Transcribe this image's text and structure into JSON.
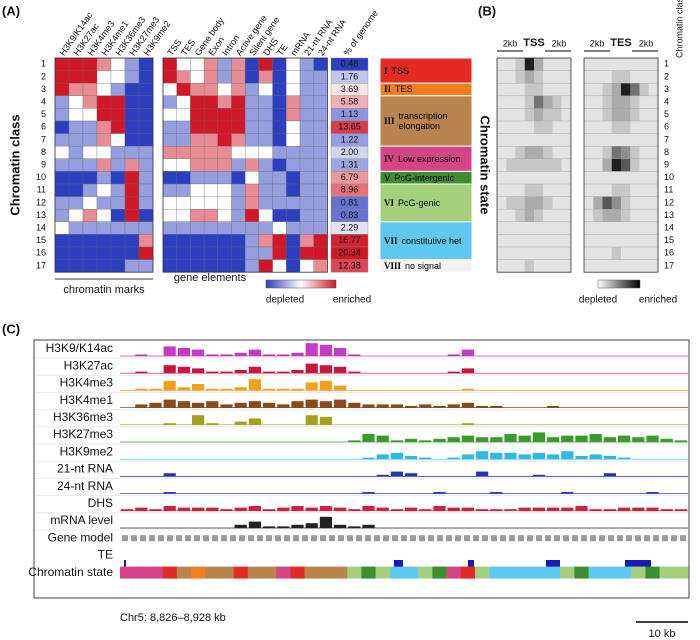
{
  "panel_a": {
    "label": "(A)",
    "y_axis_label": "Chromatin class",
    "classes": [
      1,
      2,
      3,
      4,
      5,
      6,
      7,
      8,
      9,
      10,
      11,
      12,
      13,
      14,
      15,
      16,
      17
    ],
    "marks": {
      "caption": "chromatin marks",
      "columns": [
        "H3K9/K14ac",
        "H3K27ac",
        "H3K4me3",
        "H3K4me1",
        "H3K36me3",
        "H3K27me3",
        "H3K9me2"
      ],
      "values": [
        [
          2,
          2,
          2,
          1,
          0,
          -1,
          -2
        ],
        [
          2,
          2,
          2,
          0,
          0,
          -1,
          -2
        ],
        [
          2,
          1,
          1,
          0,
          -1,
          -2,
          -2
        ],
        [
          -1,
          0,
          1,
          2,
          2,
          -2,
          -2
        ],
        [
          -1,
          0,
          0,
          2,
          2,
          -2,
          -2
        ],
        [
          -2,
          -1,
          -1,
          1,
          2,
          -2,
          -2
        ],
        [
          -1,
          -1,
          -1,
          1,
          0,
          -2,
          -2
        ],
        [
          0,
          -1,
          0,
          0,
          -1,
          -1,
          -1
        ],
        [
          -1,
          -1,
          -1,
          1,
          -1,
          1,
          -1
        ],
        [
          -2,
          -2,
          -2,
          -1,
          -2,
          2,
          -1
        ],
        [
          -2,
          -2,
          -1,
          0,
          -1,
          2,
          -1
        ],
        [
          -1,
          -1,
          0,
          -1,
          -1,
          2,
          -1
        ],
        [
          -1,
          0,
          1,
          0,
          -2,
          2,
          -2
        ],
        [
          0,
          -1,
          -1,
          -1,
          -1,
          -1,
          -1
        ],
        [
          -2,
          -2,
          -2,
          -2,
          -2,
          -2,
          1
        ],
        [
          -2,
          -2,
          -2,
          -2,
          -2,
          -2,
          2
        ],
        [
          -2,
          -2,
          -2,
          -2,
          -2,
          -1,
          -1
        ]
      ]
    },
    "elements": {
      "caption": "gene elements",
      "columns": [
        "TSS",
        "TES",
        "Gene body",
        "Exon",
        "Intron",
        "Active gene",
        "Silent gene",
        "DHS",
        "TE",
        "mRNA",
        "21-nt RNA",
        "24-nt RNA"
      ],
      "values": [
        [
          2,
          0,
          0,
          1,
          -1,
          1,
          -2,
          2,
          -2,
          0,
          -1,
          -2
        ],
        [
          2,
          1,
          0,
          1,
          -1,
          1,
          -2,
          1,
          -2,
          0,
          -1,
          -1
        ],
        [
          0,
          2,
          1,
          1,
          0,
          1,
          -1,
          0,
          -2,
          0,
          -1,
          -1
        ],
        [
          -1,
          0,
          2,
          2,
          1,
          2,
          -1,
          -1,
          -2,
          1,
          -1,
          -1
        ],
        [
          0,
          0,
          2,
          2,
          2,
          2,
          -1,
          -1,
          -2,
          1,
          -1,
          -1
        ],
        [
          -1,
          -1,
          2,
          2,
          2,
          2,
          -1,
          -1,
          -2,
          0,
          -1,
          -1
        ],
        [
          -1,
          -1,
          1,
          1,
          2,
          1,
          -1,
          -1,
          -2,
          0,
          -1,
          -1
        ],
        [
          1,
          1,
          1,
          1,
          1,
          0,
          0,
          0,
          -1,
          -1,
          -1,
          -1
        ],
        [
          0,
          0,
          1,
          1,
          1,
          -1,
          1,
          -1,
          -2,
          -1,
          -1,
          -1
        ],
        [
          -2,
          -2,
          -1,
          -1,
          -1,
          -2,
          0,
          -1,
          -1,
          -2,
          -1,
          -1
        ],
        [
          -1,
          -1,
          0,
          0,
          0,
          -1,
          1,
          -1,
          -1,
          -2,
          -1,
          -1
        ],
        [
          0,
          0,
          0,
          0,
          0,
          -1,
          1,
          -1,
          -1,
          -1,
          -1,
          -1
        ],
        [
          0,
          0,
          1,
          1,
          0,
          -1,
          2,
          0,
          -2,
          -2,
          -1,
          -1
        ],
        [
          -1,
          -1,
          -1,
          -1,
          -1,
          -1,
          -1,
          -1,
          0,
          -1,
          -1,
          -1
        ],
        [
          -2,
          -2,
          -2,
          -2,
          -2,
          -2,
          -1,
          1,
          2,
          -2,
          1,
          2
        ],
        [
          -2,
          -2,
          -2,
          -2,
          -2,
          -2,
          -1,
          -1,
          2,
          -2,
          2,
          2
        ],
        [
          -2,
          -2,
          -2,
          -2,
          -2,
          -2,
          -1,
          2,
          0,
          -2,
          0,
          1
        ]
      ]
    },
    "genome_percent": {
      "header": "% of genome",
      "values": [
        0.48,
        1.76,
        3.69,
        5.58,
        1.13,
        13.65,
        1.22,
        2.0,
        1.31,
        6.79,
        8.96,
        0.81,
        0.83,
        2.29,
        16.77,
        20.34,
        12.38
      ],
      "value_labels": [
        "0.48",
        "1.76",
        "3.69",
        "5.58",
        "1.13",
        "13.65",
        "1.22",
        "2.00",
        "1.31",
        "6.79",
        "8.96",
        "0.81",
        "0.83",
        "2.29",
        "16.77",
        "20.34",
        "12.38"
      ]
    },
    "legend": {
      "low": "depleted",
      "high": "enriched"
    },
    "state_title": "Chromatin state",
    "states": [
      {
        "numeral": "I",
        "name": "TSS",
        "color": "#e42a24",
        "classes": [
          1,
          2
        ]
      },
      {
        "numeral": "II",
        "name": "TES",
        "color": "#f37e1e",
        "classes": [
          3,
          3
        ]
      },
      {
        "numeral": "III",
        "name": "transcription elongation",
        "color": "#b9844e",
        "classes": [
          4,
          7
        ]
      },
      {
        "numeral": "IV",
        "name": "Low expression",
        "color": "#d54487",
        "classes": [
          8,
          9
        ]
      },
      {
        "numeral": "V",
        "name": "PcG-intergenic",
        "color": "#3e8d31",
        "classes": [
          10,
          10
        ]
      },
      {
        "numeral": "VI",
        "name": "PcG-genic",
        "color": "#a4d07d",
        "classes": [
          11,
          13
        ]
      },
      {
        "numeral": "VII",
        "name": "constitutive het",
        "color": "#5fc8ef",
        "classes": [
          14,
          16
        ]
      },
      {
        "numeral": "VIII",
        "name": "no signal",
        "color": "#f2f2f2",
        "classes": [
          17,
          17
        ]
      }
    ]
  },
  "panel_b": {
    "label": "(B)",
    "flank": "2kb",
    "tss": "TSS",
    "tes": "TES",
    "class_header": "Chromatin class",
    "tss_profile": [
      [
        1,
        1,
        2,
        8,
        3,
        1,
        1,
        1
      ],
      [
        1,
        1,
        2,
        3,
        2,
        1,
        1,
        1
      ],
      [
        1,
        1,
        1,
        2,
        2,
        1,
        1,
        1
      ],
      [
        1,
        1,
        1,
        2,
        5,
        3,
        2,
        1
      ],
      [
        1,
        1,
        1,
        2,
        3,
        2,
        2,
        1
      ],
      [
        1,
        1,
        1,
        1,
        2,
        2,
        1,
        1
      ],
      [
        1,
        1,
        1,
        1,
        1,
        1,
        1,
        1
      ],
      [
        1,
        1,
        2,
        3,
        3,
        2,
        1,
        1
      ],
      [
        1,
        2,
        2,
        2,
        2,
        2,
        2,
        1
      ],
      [
        1,
        1,
        1,
        1,
        1,
        1,
        1,
        1
      ],
      [
        1,
        1,
        1,
        2,
        2,
        1,
        1,
        1
      ],
      [
        1,
        2,
        2,
        3,
        3,
        2,
        1,
        1
      ],
      [
        1,
        1,
        2,
        3,
        2,
        1,
        1,
        1
      ],
      [
        1,
        1,
        1,
        1,
        1,
        1,
        1,
        1
      ],
      [
        1,
        1,
        1,
        1,
        1,
        1,
        1,
        1
      ],
      [
        1,
        1,
        1,
        1,
        1,
        1,
        1,
        1
      ],
      [
        1,
        1,
        1,
        2,
        1,
        1,
        1,
        1
      ]
    ],
    "tes_profile": [
      [
        1,
        1,
        1,
        1,
        1,
        1,
        1,
        1
      ],
      [
        1,
        1,
        1,
        2,
        2,
        1,
        1,
        1
      ],
      [
        1,
        1,
        2,
        3,
        8,
        5,
        2,
        1
      ],
      [
        1,
        1,
        2,
        3,
        3,
        2,
        1,
        1
      ],
      [
        1,
        1,
        2,
        3,
        3,
        2,
        1,
        1
      ],
      [
        1,
        1,
        1,
        2,
        2,
        1,
        1,
        1
      ],
      [
        1,
        1,
        1,
        1,
        1,
        1,
        1,
        1
      ],
      [
        1,
        1,
        2,
        5,
        4,
        2,
        1,
        1
      ],
      [
        1,
        1,
        3,
        8,
        6,
        2,
        1,
        1
      ],
      [
        1,
        1,
        1,
        1,
        1,
        1,
        1,
        1
      ],
      [
        1,
        1,
        1,
        2,
        2,
        1,
        1,
        1
      ],
      [
        1,
        3,
        6,
        4,
        2,
        1,
        1,
        1
      ],
      [
        1,
        2,
        3,
        3,
        2,
        1,
        1,
        1
      ],
      [
        1,
        1,
        1,
        1,
        1,
        1,
        1,
        1
      ],
      [
        1,
        1,
        1,
        1,
        1,
        1,
        1,
        1
      ],
      [
        1,
        1,
        1,
        2,
        1,
        1,
        1,
        1
      ],
      [
        1,
        1,
        1,
        1,
        1,
        1,
        1,
        1
      ]
    ],
    "legend": {
      "low": "depleted",
      "high": "enriched"
    }
  },
  "panel_c": {
    "label": "(C)",
    "tracks": [
      {
        "name": "H3K9/K14ac",
        "color": "#c53bc6",
        "values": [
          0,
          1,
          0,
          6,
          5,
          4,
          1,
          1,
          2,
          4,
          1,
          1,
          2,
          8,
          7,
          5,
          1,
          0,
          0,
          0,
          0,
          0,
          0,
          1,
          4,
          0,
          0,
          0,
          0,
          0,
          0,
          0,
          0,
          0,
          0,
          0,
          0,
          0,
          0,
          0
        ]
      },
      {
        "name": "H3K27ac",
        "color": "#c8163f",
        "values": [
          0,
          1,
          0,
          5,
          4,
          3,
          1,
          1,
          2,
          4,
          1,
          1,
          2,
          6,
          5,
          4,
          1,
          0,
          0,
          0,
          0,
          0,
          0,
          1,
          3,
          0,
          0,
          0,
          0,
          0,
          0,
          0,
          0,
          0,
          0,
          0,
          0,
          0,
          0,
          0
        ]
      },
      {
        "name": "H3K4me3",
        "color": "#f0a11e",
        "values": [
          0,
          1,
          1,
          6,
          2,
          4,
          1,
          1,
          2,
          7,
          1,
          1,
          1,
          5,
          6,
          3,
          0,
          0,
          0,
          0,
          0,
          0,
          0,
          0,
          1,
          0,
          0,
          0,
          0,
          0,
          0,
          0,
          0,
          0,
          0,
          0,
          0,
          0,
          0,
          0
        ]
      },
      {
        "name": "H3K4me1",
        "color": "#8b4a1a",
        "values": [
          0,
          2,
          3,
          5,
          4,
          3,
          4,
          2,
          3,
          4,
          3,
          2,
          4,
          5,
          4,
          5,
          3,
          2,
          2,
          2,
          1,
          2,
          1,
          2,
          3,
          1,
          1,
          0,
          0,
          0,
          1,
          0,
          0,
          0,
          0,
          0,
          0,
          0,
          0,
          0
        ]
      },
      {
        "name": "H3K36me3",
        "color": "#a3a21e",
        "values": [
          0,
          0,
          0,
          1,
          0,
          6,
          1,
          0,
          2,
          4,
          0,
          0,
          0,
          6,
          5,
          0,
          0,
          0,
          0,
          0,
          0,
          0,
          0,
          0,
          1,
          0,
          0,
          0,
          0,
          0,
          0,
          0,
          0,
          0,
          0,
          0,
          0,
          0,
          0,
          0
        ]
      },
      {
        "name": "H3K27me3",
        "color": "#3a9a2c",
        "values": [
          0,
          0,
          0,
          0,
          0,
          0,
          0,
          0,
          0,
          0,
          0,
          0,
          0,
          0,
          0,
          0,
          1,
          5,
          4,
          1,
          2,
          1,
          2,
          3,
          4,
          3,
          3,
          5,
          4,
          6,
          3,
          4,
          4,
          5,
          3,
          4,
          3,
          4,
          2,
          1
        ]
      },
      {
        "name": "H3K9me2",
        "color": "#2fb9e6",
        "values": [
          0,
          0,
          0,
          0,
          0,
          0,
          0,
          0,
          0,
          0,
          0,
          0,
          0,
          0,
          0,
          0,
          0,
          1,
          3,
          4,
          2,
          1,
          0,
          1,
          3,
          5,
          4,
          4,
          3,
          4,
          3,
          5,
          2,
          3,
          2,
          1,
          0,
          0,
          0,
          0
        ]
      },
      {
        "name": "21-nt RNA",
        "color": "#2433b8",
        "values": [
          0,
          0,
          0,
          2,
          0,
          0,
          0,
          0,
          0,
          0,
          0,
          0,
          0,
          0,
          0,
          0,
          0,
          0,
          1,
          3,
          2,
          0,
          0,
          0,
          0,
          3,
          0,
          0,
          0,
          1,
          0,
          0,
          0,
          0,
          2,
          0,
          0,
          0,
          0,
          0
        ]
      },
      {
        "name": "24-nt RNA",
        "color": "#3442cc",
        "values": [
          0,
          0,
          0,
          1,
          0,
          0,
          0,
          0,
          0,
          0,
          0,
          0,
          0,
          0,
          0,
          0,
          0,
          1,
          0,
          0,
          0,
          0,
          1,
          0,
          0,
          0,
          1,
          0,
          0,
          0,
          0,
          1,
          0,
          0,
          0,
          0,
          0,
          1,
          0,
          0
        ]
      },
      {
        "name": "DHS",
        "color": "#d1203c",
        "values": [
          1,
          2,
          1,
          3,
          2,
          2,
          2,
          1,
          2,
          3,
          1,
          2,
          3,
          2,
          3,
          2,
          1,
          3,
          2,
          1,
          2,
          1,
          3,
          2,
          2,
          1,
          1,
          1,
          2,
          2,
          2,
          2,
          3,
          1,
          1,
          2,
          2,
          2,
          1,
          1
        ]
      },
      {
        "name": "mRNA level",
        "color": "#222222",
        "values": [
          0,
          0,
          0,
          0,
          0,
          0,
          0,
          0,
          2,
          4,
          1,
          1,
          2,
          3,
          7,
          2,
          1,
          2,
          0,
          0,
          0,
          0,
          0,
          0,
          0,
          0,
          0,
          0,
          0,
          0,
          0,
          0,
          0,
          0,
          0,
          0,
          0,
          0,
          0,
          0
        ]
      }
    ],
    "gene_model": "Gene model",
    "te": "TE",
    "state_track": {
      "name": "Chromatin state",
      "values": [
        4,
        4,
        4,
        1,
        3,
        2,
        3,
        3,
        1,
        3,
        3,
        4,
        1,
        3,
        3,
        3,
        6,
        5,
        6,
        7,
        7,
        6,
        5,
        4,
        1,
        6,
        7,
        7,
        7,
        7,
        7,
        6,
        5,
        7,
        7,
        7,
        6,
        5,
        6,
        6
      ]
    },
    "region": "Chr5: 8,826–8,928 kb",
    "scale": "10 kb"
  }
}
